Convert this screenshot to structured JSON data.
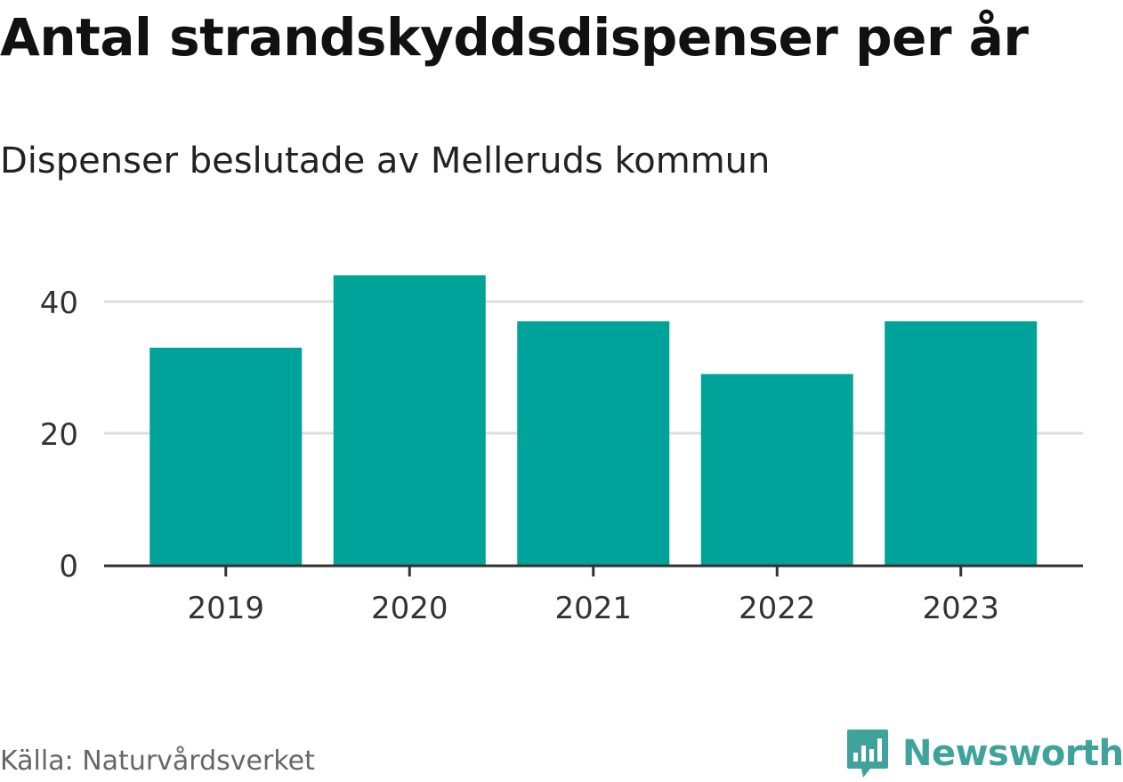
{
  "chart_data": {
    "type": "bar",
    "title": "Antal strandskyddsdispenser per år",
    "subtitle": "Dispenser beslutade av Melleruds kommun",
    "categories": [
      "2019",
      "2020",
      "2021",
      "2022",
      "2023"
    ],
    "values": [
      33,
      44,
      37,
      29,
      37
    ],
    "xlabel": "",
    "ylabel": "",
    "ylim": [
      0,
      50
    ],
    "yticks": [
      0,
      20,
      40
    ],
    "ytick_labels": [
      "0",
      "20",
      "40"
    ],
    "grid": true,
    "bar_color": "#00a39a",
    "grid_color": "#dddddd",
    "axis_color": "#333333",
    "source": "Källa: Naturvårdsverket"
  },
  "brand": {
    "name": "Newsworthy",
    "icon": "newsworthy-logo-icon",
    "color": "#3fa39c"
  }
}
